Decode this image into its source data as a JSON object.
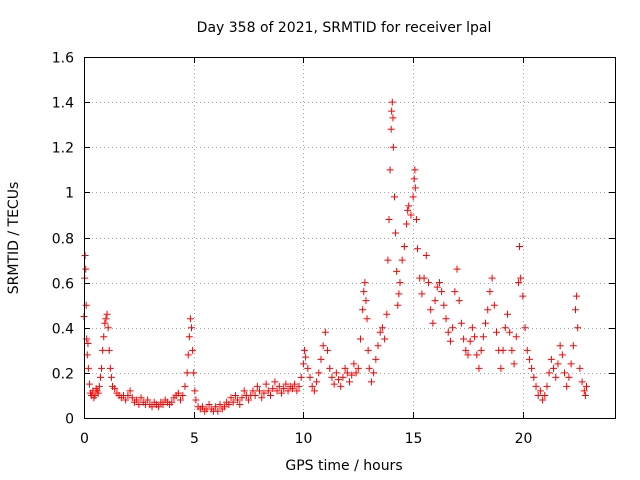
{
  "chart_data": {
    "type": "scatter",
    "title": "Day 358 of 2021, SRMTID for receiver lpal",
    "xlabel": "GPS time / hours",
    "ylabel": "SRMTID / TECUs",
    "xlim": [
      0,
      24.2
    ],
    "ylim": [
      0,
      1.6
    ],
    "xticks": [
      0,
      5,
      10,
      15,
      20
    ],
    "yticks": [
      0,
      0.2,
      0.4,
      0.6,
      0.8,
      1,
      1.2,
      1.4,
      1.6
    ],
    "xtick_labels": [
      "0",
      "5",
      "10",
      "15",
      "20"
    ],
    "ytick_labels": [
      "0",
      "0.2",
      "0.4",
      "0.6",
      "0.8",
      "1",
      "1.2",
      "1.4",
      "1.6"
    ],
    "grid": true,
    "marker": "+",
    "color": "#ff0000",
    "series": [
      {
        "name": "SRMTID",
        "points": [
          [
            0.0,
            0.45
          ],
          [
            0.03,
            0.62
          ],
          [
            0.05,
            0.72
          ],
          [
            0.08,
            0.66
          ],
          [
            0.1,
            0.5
          ],
          [
            0.12,
            0.35
          ],
          [
            0.15,
            0.28
          ],
          [
            0.18,
            0.33
          ],
          [
            0.2,
            0.22
          ],
          [
            0.25,
            0.15
          ],
          [
            0.3,
            0.11
          ],
          [
            0.35,
            0.1
          ],
          [
            0.4,
            0.12
          ],
          [
            0.45,
            0.09
          ],
          [
            0.5,
            0.1
          ],
          [
            0.55,
            0.13
          ],
          [
            0.6,
            0.12
          ],
          [
            0.65,
            0.11
          ],
          [
            0.7,
            0.14
          ],
          [
            0.75,
            0.18
          ],
          [
            0.8,
            0.22
          ],
          [
            0.85,
            0.3
          ],
          [
            0.9,
            0.36
          ],
          [
            0.95,
            0.42
          ],
          [
            1.0,
            0.44
          ],
          [
            1.05,
            0.46
          ],
          [
            1.1,
            0.4
          ],
          [
            1.15,
            0.3
          ],
          [
            1.2,
            0.22
          ],
          [
            1.25,
            0.18
          ],
          [
            1.3,
            0.14
          ],
          [
            1.4,
            0.13
          ],
          [
            1.5,
            0.11
          ],
          [
            1.6,
            0.1
          ],
          [
            1.7,
            0.09
          ],
          [
            1.8,
            0.1
          ],
          [
            1.9,
            0.08
          ],
          [
            2.0,
            0.1
          ],
          [
            2.1,
            0.12
          ],
          [
            2.2,
            0.09
          ],
          [
            2.3,
            0.07
          ],
          [
            2.4,
            0.08
          ],
          [
            2.5,
            0.06
          ],
          [
            2.6,
            0.09
          ],
          [
            2.7,
            0.07
          ],
          [
            2.8,
            0.06
          ],
          [
            2.9,
            0.08
          ],
          [
            3.0,
            0.06
          ],
          [
            3.1,
            0.05
          ],
          [
            3.2,
            0.07
          ],
          [
            3.3,
            0.06
          ],
          [
            3.4,
            0.05
          ],
          [
            3.5,
            0.07
          ],
          [
            3.6,
            0.06
          ],
          [
            3.7,
            0.08
          ],
          [
            3.8,
            0.07
          ],
          [
            3.9,
            0.06
          ],
          [
            4.0,
            0.07
          ],
          [
            4.1,
            0.09
          ],
          [
            4.2,
            0.1
          ],
          [
            4.3,
            0.11
          ],
          [
            4.4,
            0.08
          ],
          [
            4.5,
            0.1
          ],
          [
            4.6,
            0.14
          ],
          [
            4.7,
            0.2
          ],
          [
            4.75,
            0.28
          ],
          [
            4.8,
            0.36
          ],
          [
            4.85,
            0.44
          ],
          [
            4.9,
            0.4
          ],
          [
            4.95,
            0.3
          ],
          [
            5.0,
            0.2
          ],
          [
            5.05,
            0.12
          ],
          [
            5.1,
            0.08
          ],
          [
            5.2,
            0.05
          ],
          [
            5.3,
            0.04
          ],
          [
            5.4,
            0.05
          ],
          [
            5.5,
            0.03
          ],
          [
            5.6,
            0.04
          ],
          [
            5.7,
            0.06
          ],
          [
            5.8,
            0.04
          ],
          [
            5.9,
            0.03
          ],
          [
            6.0,
            0.05
          ],
          [
            6.1,
            0.03
          ],
          [
            6.2,
            0.06
          ],
          [
            6.3,
            0.04
          ],
          [
            6.4,
            0.05
          ],
          [
            6.5,
            0.07
          ],
          [
            6.6,
            0.06
          ],
          [
            6.7,
            0.09
          ],
          [
            6.8,
            0.07
          ],
          [
            6.9,
            0.1
          ],
          [
            7.0,
            0.08
          ],
          [
            7.1,
            0.06
          ],
          [
            7.2,
            0.09
          ],
          [
            7.3,
            0.12
          ],
          [
            7.4,
            0.1
          ],
          [
            7.5,
            0.08
          ],
          [
            7.6,
            0.1
          ],
          [
            7.7,
            0.12
          ],
          [
            7.8,
            0.1
          ],
          [
            7.9,
            0.14
          ],
          [
            8.0,
            0.12
          ],
          [
            8.1,
            0.09
          ],
          [
            8.2,
            0.11
          ],
          [
            8.3,
            0.15
          ],
          [
            8.4,
            0.12
          ],
          [
            8.5,
            0.1
          ],
          [
            8.6,
            0.13
          ],
          [
            8.7,
            0.16
          ],
          [
            8.8,
            0.12
          ],
          [
            8.9,
            0.14
          ],
          [
            9.0,
            0.11
          ],
          [
            9.1,
            0.13
          ],
          [
            9.2,
            0.15
          ],
          [
            9.3,
            0.12
          ],
          [
            9.4,
            0.14
          ],
          [
            9.5,
            0.13
          ],
          [
            9.6,
            0.15
          ],
          [
            9.7,
            0.12
          ],
          [
            9.8,
            0.14
          ],
          [
            9.9,
            0.18
          ],
          [
            10.0,
            0.24
          ],
          [
            10.05,
            0.3
          ],
          [
            10.1,
            0.27
          ],
          [
            10.2,
            0.22
          ],
          [
            10.3,
            0.18
          ],
          [
            10.4,
            0.14
          ],
          [
            10.5,
            0.12
          ],
          [
            10.6,
            0.16
          ],
          [
            10.7,
            0.2
          ],
          [
            10.8,
            0.26
          ],
          [
            10.9,
            0.32
          ],
          [
            11.0,
            0.38
          ],
          [
            11.1,
            0.3
          ],
          [
            11.2,
            0.22
          ],
          [
            11.3,
            0.18
          ],
          [
            11.4,
            0.15
          ],
          [
            11.5,
            0.2
          ],
          [
            11.6,
            0.17
          ],
          [
            11.7,
            0.14
          ],
          [
            11.8,
            0.18
          ],
          [
            11.9,
            0.22
          ],
          [
            12.0,
            0.2
          ],
          [
            12.1,
            0.16
          ],
          [
            12.2,
            0.19
          ],
          [
            12.3,
            0.24
          ],
          [
            12.4,
            0.2
          ],
          [
            12.5,
            0.22
          ],
          [
            12.6,
            0.35
          ],
          [
            12.7,
            0.48
          ],
          [
            12.75,
            0.56
          ],
          [
            12.8,
            0.6
          ],
          [
            12.85,
            0.52
          ],
          [
            12.9,
            0.44
          ],
          [
            12.95,
            0.3
          ],
          [
            13.0,
            0.22
          ],
          [
            13.1,
            0.16
          ],
          [
            13.2,
            0.2
          ],
          [
            13.3,
            0.26
          ],
          [
            13.4,
            0.32
          ],
          [
            13.5,
            0.38
          ],
          [
            13.6,
            0.4
          ],
          [
            13.7,
            0.35
          ],
          [
            13.8,
            0.46
          ],
          [
            13.85,
            0.7
          ],
          [
            13.9,
            0.88
          ],
          [
            13.95,
            1.1
          ],
          [
            14.0,
            1.28
          ],
          [
            14.02,
            1.36
          ],
          [
            14.05,
            1.4
          ],
          [
            14.08,
            1.33
          ],
          [
            14.1,
            1.2
          ],
          [
            14.15,
            0.98
          ],
          [
            14.2,
            0.82
          ],
          [
            14.25,
            0.65
          ],
          [
            14.3,
            0.5
          ],
          [
            14.35,
            0.55
          ],
          [
            14.4,
            0.6
          ],
          [
            14.5,
            0.7
          ],
          [
            14.6,
            0.76
          ],
          [
            14.7,
            0.86
          ],
          [
            14.75,
            0.92
          ],
          [
            14.8,
            0.94
          ],
          [
            14.9,
            0.9
          ],
          [
            15.0,
            0.98
          ],
          [
            15.05,
            1.06
          ],
          [
            15.08,
            1.1
          ],
          [
            15.1,
            1.02
          ],
          [
            15.15,
            0.88
          ],
          [
            15.2,
            0.75
          ],
          [
            15.3,
            0.62
          ],
          [
            15.4,
            0.55
          ],
          [
            15.5,
            0.62
          ],
          [
            15.6,
            0.72
          ],
          [
            15.7,
            0.6
          ],
          [
            15.8,
            0.48
          ],
          [
            15.9,
            0.42
          ],
          [
            16.0,
            0.52
          ],
          [
            16.1,
            0.58
          ],
          [
            16.2,
            0.6
          ],
          [
            16.3,
            0.56
          ],
          [
            16.4,
            0.5
          ],
          [
            16.5,
            0.44
          ],
          [
            16.6,
            0.38
          ],
          [
            16.7,
            0.34
          ],
          [
            16.8,
            0.4
          ],
          [
            16.9,
            0.56
          ],
          [
            17.0,
            0.66
          ],
          [
            17.1,
            0.52
          ],
          [
            17.2,
            0.42
          ],
          [
            17.3,
            0.35
          ],
          [
            17.4,
            0.3
          ],
          [
            17.5,
            0.28
          ],
          [
            17.6,
            0.34
          ],
          [
            17.7,
            0.4
          ],
          [
            17.8,
            0.36
          ],
          [
            17.9,
            0.28
          ],
          [
            18.0,
            0.22
          ],
          [
            18.1,
            0.3
          ],
          [
            18.2,
            0.36
          ],
          [
            18.3,
            0.42
          ],
          [
            18.4,
            0.48
          ],
          [
            18.5,
            0.56
          ],
          [
            18.6,
            0.62
          ],
          [
            18.7,
            0.5
          ],
          [
            18.8,
            0.38
          ],
          [
            18.9,
            0.3
          ],
          [
            19.0,
            0.22
          ],
          [
            19.1,
            0.3
          ],
          [
            19.2,
            0.4
          ],
          [
            19.3,
            0.46
          ],
          [
            19.4,
            0.38
          ],
          [
            19.5,
            0.3
          ],
          [
            19.6,
            0.24
          ],
          [
            19.7,
            0.36
          ],
          [
            19.8,
            0.6
          ],
          [
            19.85,
            0.76
          ],
          [
            19.9,
            0.62
          ],
          [
            20.0,
            0.54
          ],
          [
            20.1,
            0.4
          ],
          [
            20.2,
            0.3
          ],
          [
            20.3,
            0.26
          ],
          [
            20.4,
            0.22
          ],
          [
            20.5,
            0.18
          ],
          [
            20.6,
            0.14
          ],
          [
            20.7,
            0.1
          ],
          [
            20.8,
            0.12
          ],
          [
            20.9,
            0.08
          ],
          [
            21.0,
            0.1
          ],
          [
            21.1,
            0.14
          ],
          [
            21.2,
            0.2
          ],
          [
            21.3,
            0.26
          ],
          [
            21.4,
            0.22
          ],
          [
            21.5,
            0.18
          ],
          [
            21.6,
            0.24
          ],
          [
            21.7,
            0.32
          ],
          [
            21.8,
            0.28
          ],
          [
            21.9,
            0.2
          ],
          [
            22.0,
            0.14
          ],
          [
            22.1,
            0.18
          ],
          [
            22.2,
            0.24
          ],
          [
            22.3,
            0.32
          ],
          [
            22.4,
            0.48
          ],
          [
            22.45,
            0.54
          ],
          [
            22.5,
            0.4
          ],
          [
            22.6,
            0.22
          ],
          [
            22.7,
            0.16
          ],
          [
            22.8,
            0.12
          ],
          [
            22.85,
            0.1
          ],
          [
            22.9,
            0.14
          ]
        ]
      }
    ]
  }
}
